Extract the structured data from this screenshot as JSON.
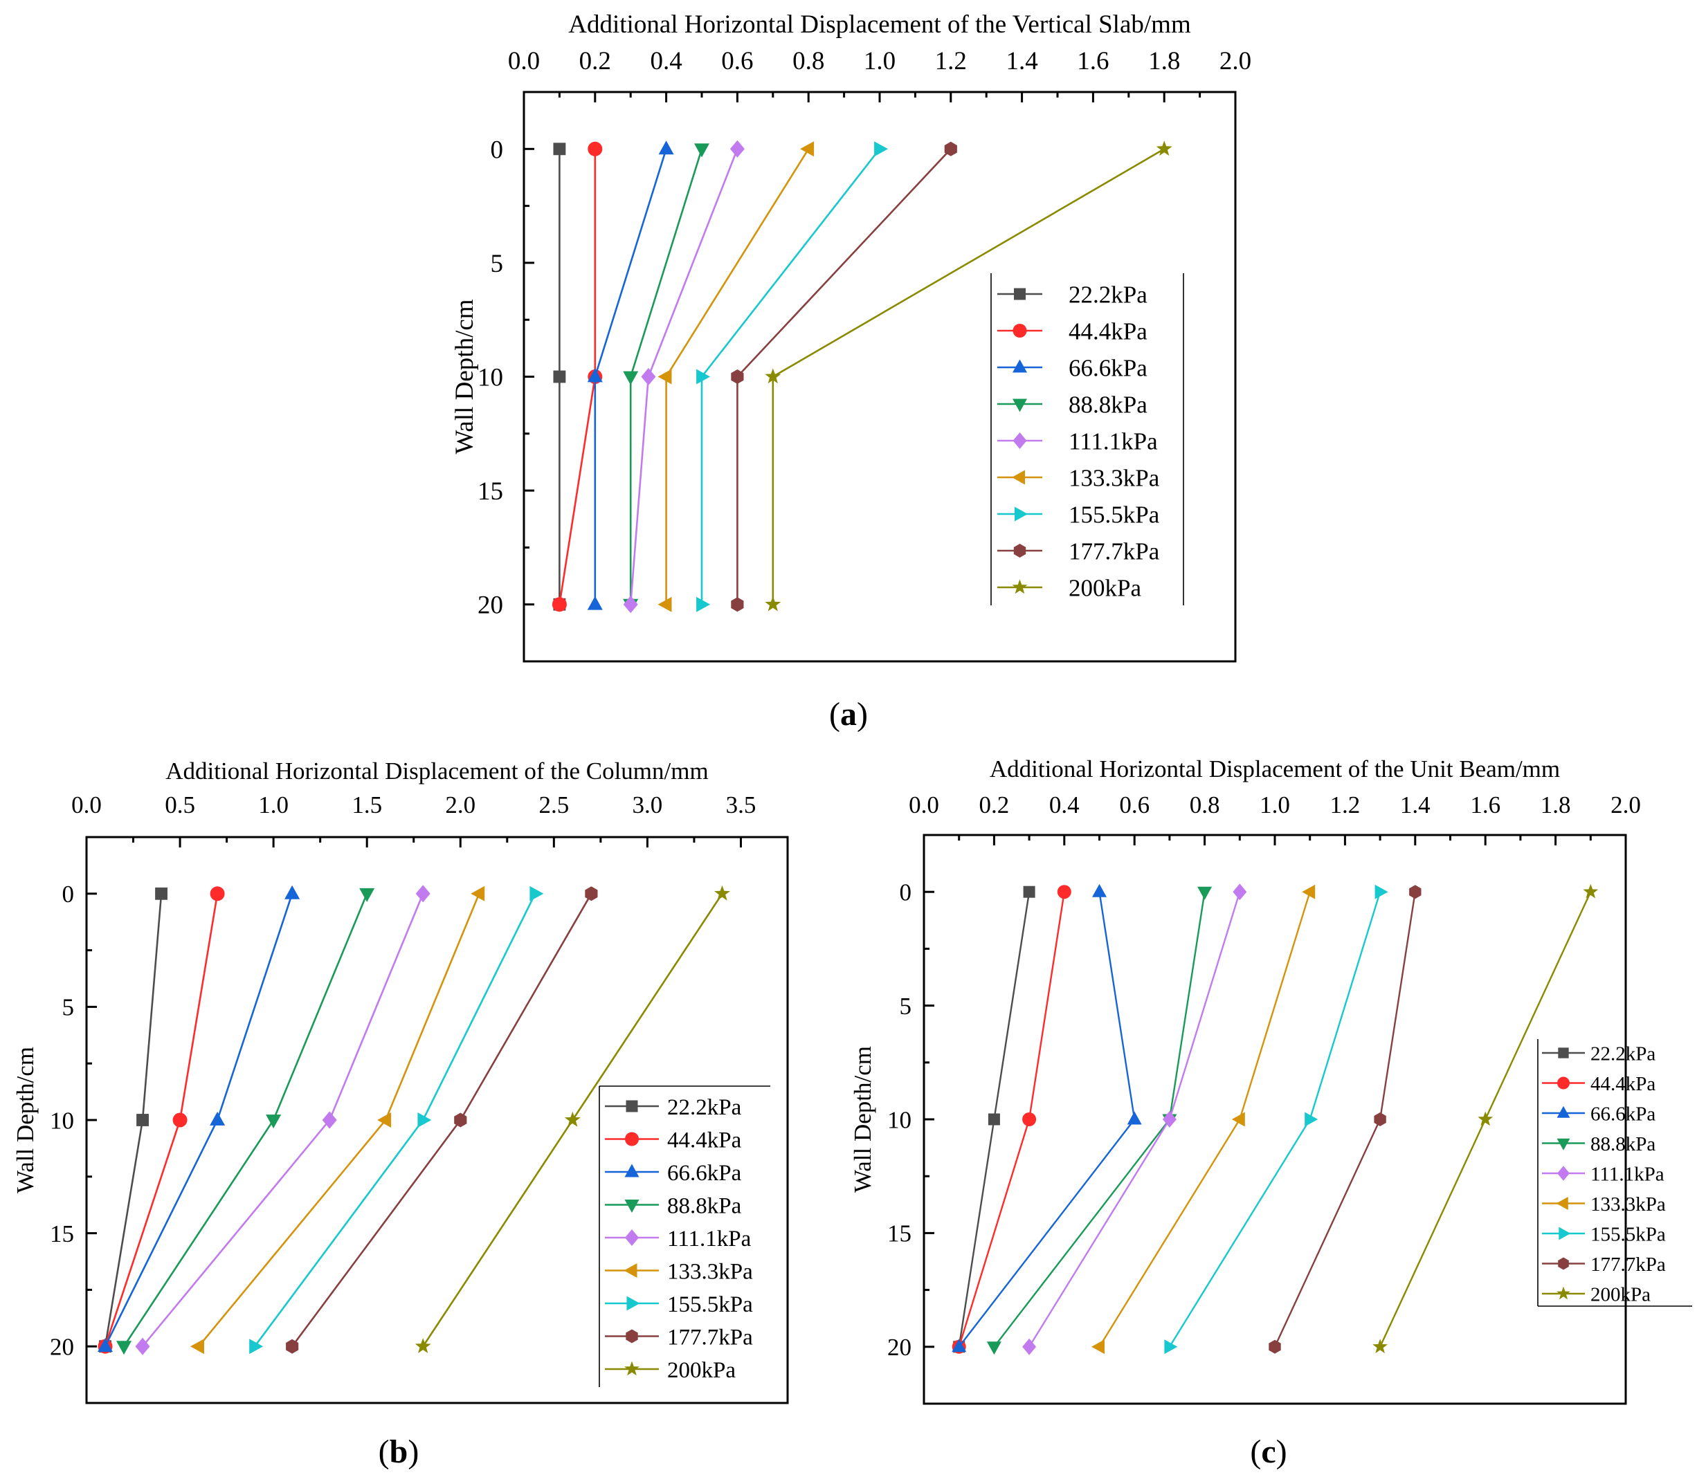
{
  "figure": {
    "panel_labels": [
      "(a)",
      "(b)",
      "(c)"
    ]
  },
  "legend_series": [
    "22.2kPa",
    "44.4kPa",
    "66.6kPa",
    "88.8kPa",
    "111.1kPa",
    "133.3kPa",
    "155.5kPa",
    "177.7kPa",
    "200kPa"
  ],
  "series_style": {
    "colors": [
      "#4d4d4d",
      "#ff2a2a",
      "#1565d8",
      "#1a9a58",
      "#c27bef",
      "#d5930c",
      "#17c9cf",
      "#87403f",
      "#8a8a00"
    ],
    "markers": [
      "square",
      "circle",
      "triangle-up",
      "triangle-down",
      "diamond",
      "triangle-left",
      "triangle-right",
      "hexagon",
      "star"
    ]
  },
  "chart_data": [
    {
      "type": "line",
      "panel": "(a)",
      "title": "",
      "xlabel": "Additional Horizontal Displacement of the Vertical Slab/mm",
      "ylabel": "Wall Depth/cm",
      "xlim": [
        0.0,
        2.0
      ],
      "ylim": [
        22.5,
        -2.5
      ],
      "x_ticks": [
        "0.0",
        "0.2",
        "0.4",
        "0.6",
        "0.8",
        "1.0",
        "1.2",
        "1.4",
        "1.6",
        "1.8",
        "2.0"
      ],
      "y_ticks": [
        "0",
        "5",
        "10",
        "15",
        "20"
      ],
      "depths": [
        0,
        10,
        20
      ],
      "legend_position": "center-right",
      "series": [
        {
          "name": "22.2kPa",
          "x": [
            0.1,
            0.1,
            0.1
          ]
        },
        {
          "name": "44.4kPa",
          "x": [
            0.2,
            0.2,
            0.1
          ]
        },
        {
          "name": "66.6kPa",
          "x": [
            0.4,
            0.2,
            0.2
          ]
        },
        {
          "name": "88.8kPa",
          "x": [
            0.5,
            0.3,
            0.3
          ]
        },
        {
          "name": "111.1kPa",
          "x": [
            0.6,
            0.35,
            0.3
          ]
        },
        {
          "name": "133.3kPa",
          "x": [
            0.8,
            0.4,
            0.4
          ]
        },
        {
          "name": "155.5kPa",
          "x": [
            1.0,
            0.5,
            0.5
          ]
        },
        {
          "name": "177.7kPa",
          "x": [
            1.2,
            0.6,
            0.6
          ]
        },
        {
          "name": "200kPa",
          "x": [
            1.8,
            0.7,
            0.7
          ]
        }
      ]
    },
    {
      "type": "line",
      "panel": "(b)",
      "title": "",
      "xlabel": "Additional Horizontal Displacement of the Column/mm",
      "ylabel": "Wall Depth/cm",
      "xlim": [
        0.0,
        3.75
      ],
      "ylim": [
        22.5,
        -2.5
      ],
      "x_ticks": [
        "0.0",
        "0.5",
        "1.0",
        "1.5",
        "2.0",
        "2.5",
        "3.0",
        "3.5"
      ],
      "y_ticks": [
        "0",
        "5",
        "10",
        "15",
        "20"
      ],
      "depths": [
        0,
        10,
        20
      ],
      "legend_position": "lower-right",
      "series": [
        {
          "name": "22.2kPa",
          "x": [
            0.4,
            0.3,
            0.1
          ]
        },
        {
          "name": "44.4kPa",
          "x": [
            0.7,
            0.5,
            0.1
          ]
        },
        {
          "name": "66.6kPa",
          "x": [
            1.1,
            0.7,
            0.1
          ]
        },
        {
          "name": "88.8kPa",
          "x": [
            1.5,
            1.0,
            0.2
          ]
        },
        {
          "name": "111.1kPa",
          "x": [
            1.8,
            1.3,
            0.3
          ]
        },
        {
          "name": "133.3kPa",
          "x": [
            2.1,
            1.6,
            0.6
          ]
        },
        {
          "name": "155.5kPa",
          "x": [
            2.4,
            1.8,
            0.9
          ]
        },
        {
          "name": "177.7kPa",
          "x": [
            2.7,
            2.0,
            1.1
          ]
        },
        {
          "name": "200kPa",
          "x": [
            3.4,
            2.6,
            1.8
          ]
        }
      ]
    },
    {
      "type": "line",
      "panel": "(c)",
      "title": "",
      "xlabel": "Additional Horizontal Displacement of the Unit Beam/mm",
      "ylabel": "Wall Depth/cm",
      "xlim": [
        0.0,
        2.0
      ],
      "ylim": [
        22.5,
        -2.5
      ],
      "x_ticks": [
        "0.0",
        "0.2",
        "0.4",
        "0.6",
        "0.8",
        "1.0",
        "1.2",
        "1.4",
        "1.6",
        "1.8",
        "2.0"
      ],
      "y_ticks": [
        "0",
        "5",
        "10",
        "15",
        "20"
      ],
      "depths": [
        0,
        10,
        20
      ],
      "legend_position": "outside-right",
      "series": [
        {
          "name": "22.2kPa",
          "x": [
            0.3,
            0.2,
            0.1
          ]
        },
        {
          "name": "44.4kPa",
          "x": [
            0.4,
            0.3,
            0.1
          ]
        },
        {
          "name": "66.6kPa",
          "x": [
            0.5,
            0.6,
            0.1
          ]
        },
        {
          "name": "88.8kPa",
          "x": [
            0.8,
            0.7,
            0.2
          ]
        },
        {
          "name": "111.1kPa",
          "x": [
            0.9,
            0.7,
            0.3
          ]
        },
        {
          "name": "133.3kPa",
          "x": [
            1.1,
            0.9,
            0.5
          ]
        },
        {
          "name": "155.5kPa",
          "x": [
            1.3,
            1.1,
            0.7
          ]
        },
        {
          "name": "177.7kPa",
          "x": [
            1.4,
            1.3,
            1.0
          ]
        },
        {
          "name": "200kPa",
          "x": [
            1.9,
            1.6,
            1.3
          ]
        }
      ]
    }
  ]
}
